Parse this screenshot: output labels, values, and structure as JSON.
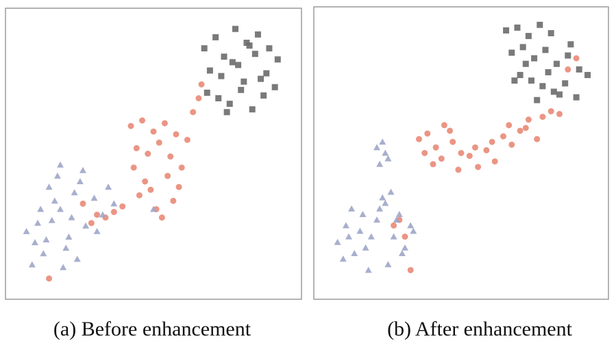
{
  "chart_data": [
    {
      "type": "scatter",
      "title": "(a) Before enhancement",
      "xlim": [
        0,
        100
      ],
      "ylim": [
        0,
        100
      ],
      "series": [
        {
          "marker": "square",
          "color": "#6b6b6b",
          "x": [
            68,
            72,
            75,
            79,
            83,
            87,
            91,
            94,
            70,
            74,
            78,
            82,
            86,
            90,
            93,
            69,
            73,
            77,
            81,
            85,
            89,
            76,
            80,
            84,
            88
          ],
          "values": [
            88,
            92,
            85,
            95,
            90,
            93,
            88,
            84,
            80,
            78,
            83,
            76,
            86,
            79,
            74,
            72,
            70,
            68,
            73,
            66,
            71,
            65,
            82,
            89,
            77
          ]
        },
        {
          "marker": "circle",
          "color": "#e8836f",
          "x": [
            42,
            46,
            50,
            54,
            58,
            44,
            48,
            52,
            56,
            43,
            47,
            55,
            59,
            45,
            51,
            57,
            53,
            49,
            62,
            64,
            66,
            67,
            25,
            28,
            30,
            13,
            36,
            39,
            33,
            60
          ],
          "values": [
            60,
            62,
            58,
            61,
            57,
            52,
            50,
            54,
            49,
            45,
            40,
            42,
            38,
            35,
            30,
            33,
            27,
            37,
            55,
            65,
            70,
            75,
            32,
            25,
            28,
            5,
            29,
            31,
            27,
            45
          ]
        },
        {
          "marker": "triangle",
          "color": "#9ea6c8",
          "x": [
            5,
            8,
            11,
            14,
            17,
            20,
            23,
            26,
            29,
            32,
            7,
            10,
            13,
            16,
            19,
            22,
            25,
            9,
            12,
            15,
            18,
            21,
            24,
            34,
            36,
            17,
            50,
            30
          ],
          "values": [
            22,
            18,
            14,
            26,
            30,
            20,
            12,
            24,
            34,
            28,
            10,
            30,
            38,
            42,
            16,
            36,
            44,
            25,
            19,
            33,
            9,
            27,
            40,
            38,
            32,
            46,
            30,
            22
          ]
        }
      ]
    },
    {
      "type": "scatter",
      "title": "(b) After enhancement",
      "xlim": [
        0,
        100
      ],
      "ylim": [
        0,
        100
      ],
      "series": [
        {
          "marker": "square",
          "color": "#6b6b6b",
          "x": [
            66,
            70,
            74,
            78,
            82,
            68,
            72,
            76,
            80,
            84,
            88,
            92,
            95,
            71,
            75,
            79,
            83,
            87,
            91,
            73,
            77,
            81,
            85,
            89,
            69
          ],
          "values": [
            94,
            95,
            92,
            96,
            93,
            86,
            88,
            84,
            87,
            82,
            85,
            80,
            78,
            78,
            76,
            74,
            72,
            75,
            70,
            82,
            69,
            79,
            71,
            89,
            76
          ]
        },
        {
          "marker": "circle",
          "color": "#e8836f",
          "x": [
            35,
            38,
            41,
            44,
            47,
            50,
            53,
            56,
            59,
            62,
            65,
            68,
            71,
            74,
            77,
            37,
            43,
            49,
            55,
            61,
            67,
            73,
            79,
            82,
            85,
            40,
            46,
            28,
            30,
            32,
            26,
            91,
            88
          ],
          "values": [
            55,
            57,
            52,
            60,
            54,
            50,
            49,
            45,
            51,
            47,
            56,
            53,
            58,
            62,
            55,
            50,
            48,
            44,
            52,
            54,
            60,
            59,
            63,
            65,
            64,
            46,
            58,
            26,
            20,
            8,
            24,
            84,
            80
          ]
        },
        {
          "marker": "triangle",
          "color": "#9ea6c8",
          "x": [
            20,
            22,
            24,
            21,
            23,
            6,
            9,
            12,
            15,
            18,
            21,
            24,
            27,
            30,
            33,
            8,
            11,
            14,
            17,
            20,
            23,
            26,
            29,
            32,
            10,
            16,
            22,
            28,
            25
          ],
          "values": [
            52,
            54,
            48,
            46,
            50,
            18,
            24,
            14,
            28,
            20,
            30,
            10,
            26,
            16,
            22,
            12,
            30,
            22,
            8,
            26,
            32,
            20,
            14,
            24,
            20,
            16,
            34,
            28,
            36
          ]
        }
      ]
    }
  ]
}
